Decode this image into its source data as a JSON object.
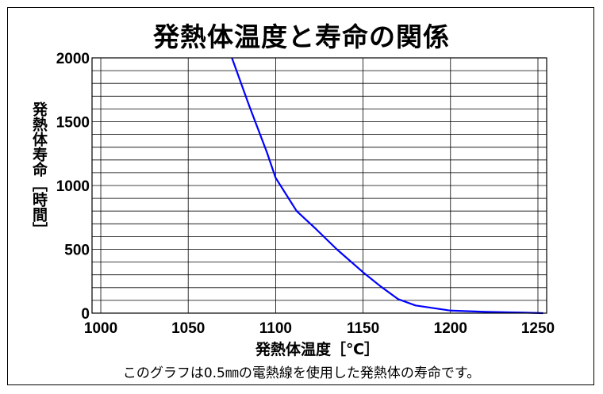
{
  "chart_data": {
    "type": "line",
    "title": "発熱体温度と寿命の関係",
    "xlabel": "発熱体温度［℃］",
    "ylabel": "発熱体寿命［時間］",
    "caption": "このグラフは0.5㎜の電熱線を使用した発熱体の寿命です。",
    "xlim": [
      995,
      1255
    ],
    "ylim": [
      0,
      2000
    ],
    "x_ticks": [
      1000,
      1050,
      1100,
      1150,
      1200,
      1250
    ],
    "y_ticks": [
      0,
      500,
      1000,
      1500,
      2000
    ],
    "grid": true,
    "series": [
      {
        "color": "#0000ff",
        "x": [
          1075,
          1085,
          1095,
          1100,
          1112,
          1123,
          1135,
          1150,
          1160,
          1170,
          1180,
          1190,
          1200,
          1220,
          1240,
          1253
        ],
        "y": [
          2000,
          1620,
          1260,
          1060,
          800,
          660,
          500,
          320,
          210,
          110,
          60,
          40,
          20,
          10,
          5,
          0
        ]
      }
    ]
  }
}
